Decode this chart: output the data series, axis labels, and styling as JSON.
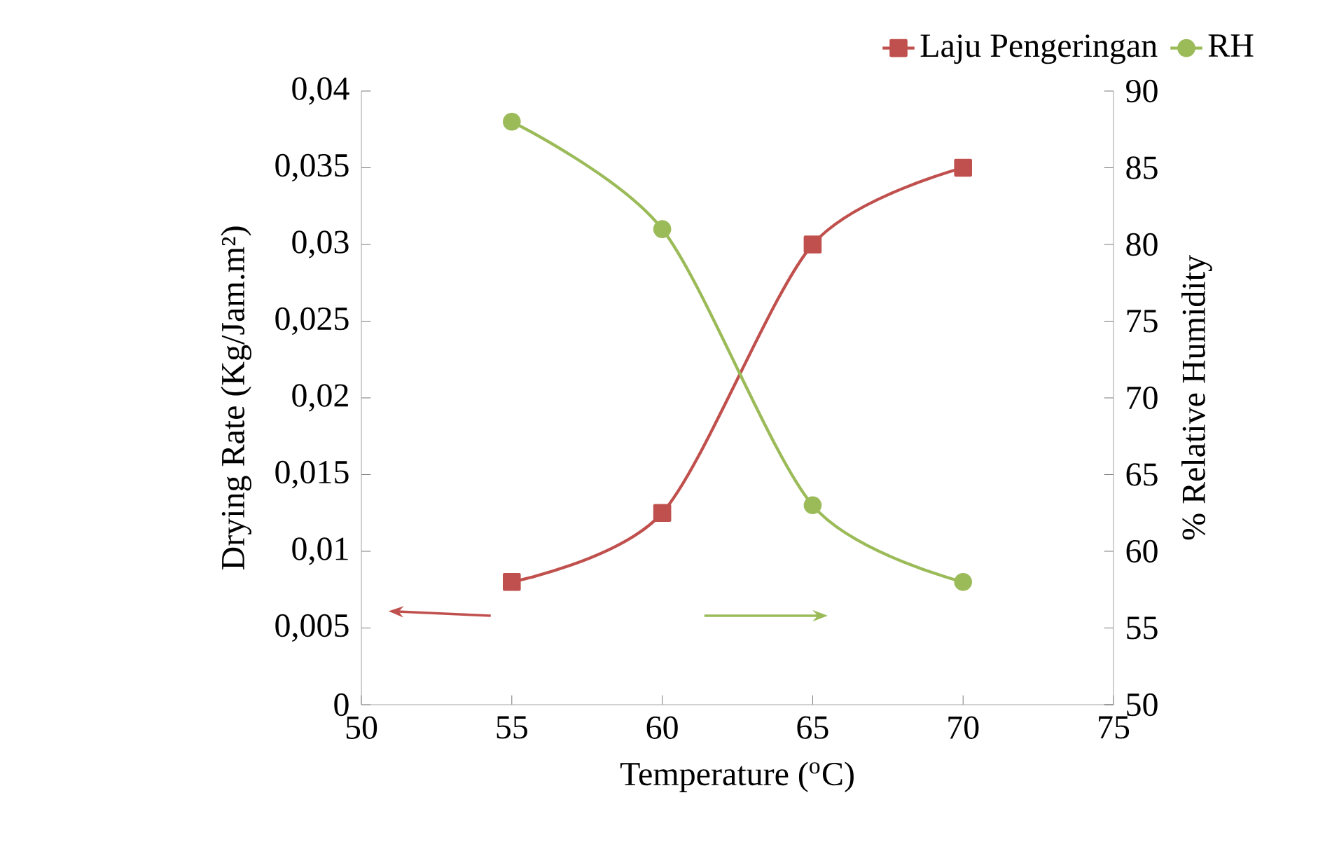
{
  "chart_data": {
    "type": "line",
    "x": [
      55,
      60,
      65,
      70
    ],
    "xlabel": "Temperature ($^{o}$C)",
    "ylabel": "Drying Rate (Kg/Jam.m²)",
    "y2label": "% Relative Humidity",
    "xlim": [
      50,
      75
    ],
    "xticks": [
      50,
      55,
      60,
      65,
      70,
      75
    ],
    "ylim": [
      0,
      0.04
    ],
    "yticks": [
      {
        "value": 0,
        "label": "0"
      },
      {
        "value": 0.005,
        "label": "0,005"
      },
      {
        "value": 0.01,
        "label": "0,01"
      },
      {
        "value": 0.015,
        "label": "0,015"
      },
      {
        "value": 0.02,
        "label": "0,02"
      },
      {
        "value": 0.025,
        "label": "0,025"
      },
      {
        "value": 0.03,
        "label": "0,03"
      },
      {
        "value": 0.035,
        "label": "0,035"
      },
      {
        "value": 0.04,
        "label": "0,04"
      }
    ],
    "y2lim": [
      50,
      90
    ],
    "y2ticks": [
      50,
      55,
      60,
      65,
      70,
      75,
      80,
      85,
      90
    ],
    "legend": "top right",
    "series": [
      {
        "name": "Laju Pengeringan",
        "color": "#c0504d",
        "marker": "square",
        "values": [
          0.008,
          0.0125,
          0.03,
          0.035
        ]
      },
      {
        "name": "RH",
        "color": "#9bbb59",
        "marker": "circle",
        "axis": "y2",
        "values": [
          88,
          81,
          63,
          58
        ]
      }
    ]
  }
}
